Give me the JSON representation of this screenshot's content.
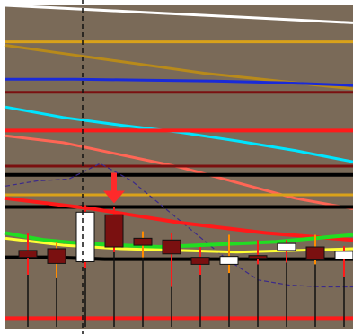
{
  "colors": {
    "background": "#7a6a58",
    "white_band": "#ffffff",
    "cursor": "#111111",
    "bear_body": "#7a1010",
    "bull_body": "#ffffff",
    "candle_outline": "#111111",
    "arrow": "#ff2a2a"
  },
  "chart_data": {
    "type": "candlestick",
    "title": "",
    "xlabel": "",
    "ylabel": "",
    "grid": false,
    "legend": "none",
    "y_range": [
      0,
      372
    ],
    "cursor_index": 2,
    "marker_index": 3,
    "marker_icon": "down-arrow-icon",
    "candles": [
      {
        "open": 90,
        "close": 82,
        "high": 110,
        "low": 62
      },
      {
        "open": 92,
        "close": 75,
        "high": 100,
        "low": 58
      },
      {
        "open": 77,
        "close": 134,
        "high": 142,
        "low": 70
      },
      {
        "open": 131,
        "close": 94,
        "high": 140,
        "low": 88
      },
      {
        "open": 104,
        "close": 96,
        "high": 112,
        "low": 82
      },
      {
        "open": 102,
        "close": 86,
        "high": 110,
        "low": 48
      },
      {
        "open": 82,
        "close": 74,
        "high": 94,
        "low": 62
      },
      {
        "open": 74,
        "close": 83,
        "high": 108,
        "low": 64
      },
      {
        "open": 84,
        "close": 82,
        "high": 102,
        "low": 74
      },
      {
        "open": 90,
        "close": 98,
        "high": 102,
        "low": 76
      },
      {
        "open": 94,
        "close": 79,
        "high": 108,
        "low": 74
      },
      {
        "open": 80,
        "close": 89,
        "high": 95,
        "low": 60
      }
    ],
    "series": [
      {
        "color": "#ffffff",
        "style": "solid",
        "values": [
          372,
          368,
          364,
          360,
          356,
          352
        ]
      },
      {
        "color": "#d9a21a",
        "style": "solid",
        "values": [
          330,
          330,
          330,
          330,
          330,
          330
        ]
      },
      {
        "color": "#b88a1a",
        "style": "solid",
        "values": [
          326,
          318,
          310,
          302,
          294,
          288,
          282,
          276
        ]
      },
      {
        "color": "#1a2ad8",
        "style": "solid",
        "values": [
          287,
          287,
          286,
          285,
          283,
          280
        ]
      },
      {
        "color": "#7a1010",
        "style": "solid",
        "values": [
          272,
          272,
          272,
          272,
          272,
          272
        ]
      },
      {
        "color": "#00e5ff",
        "style": "solid",
        "values": [
          255,
          243,
          234,
          226,
          216,
          205,
          192
        ]
      },
      {
        "color": "#ff1a1a",
        "style": "solid",
        "values": [
          228,
          228,
          228,
          228,
          228,
          228
        ]
      },
      {
        "color": "#ff6655",
        "style": "solid",
        "values": [
          222,
          214,
          200,
          186,
          168,
          150,
          138
        ]
      },
      {
        "color": "#7a1010",
        "style": "solid",
        "values": [
          187,
          187,
          187,
          187,
          187,
          187
        ]
      },
      {
        "color": "#000000",
        "style": "solid",
        "values": [
          177,
          177,
          177,
          177,
          177,
          177
        ]
      },
      {
        "color": "#d9a21a",
        "style": "solid",
        "values": [
          154,
          154,
          154,
          154,
          154,
          154
        ]
      },
      {
        "color": "#000000",
        "style": "solid",
        "values": [
          140,
          140,
          140,
          140,
          140,
          140
        ]
      },
      {
        "color": "#3b2a8a",
        "style": "dashed",
        "values": [
          164,
          170,
          172,
          190,
          170,
          140,
          110,
          80,
          56,
          50,
          48,
          48
        ]
      },
      {
        "color": "#ff1a1a",
        "style": "solid",
        "values": [
          150,
          144,
          138,
          130,
          122,
          116,
          110,
          106,
          102
        ]
      },
      {
        "color": "#22dd22",
        "style": "solid",
        "values": [
          110,
          102,
          98,
          96,
          94,
          96,
          98,
          100,
          104,
          108
        ]
      },
      {
        "color": "#ffff33",
        "style": "solid",
        "values": [
          104,
          96,
          92,
          90,
          88,
          90,
          92
        ]
      },
      {
        "color": "#000000",
        "style": "solid",
        "values": [
          82,
          82,
          80,
          80,
          80,
          80,
          80,
          80
        ]
      },
      {
        "color": "#ff1a1a",
        "style": "solid",
        "values": [
          12,
          12,
          12,
          12,
          12,
          12
        ]
      }
    ]
  }
}
